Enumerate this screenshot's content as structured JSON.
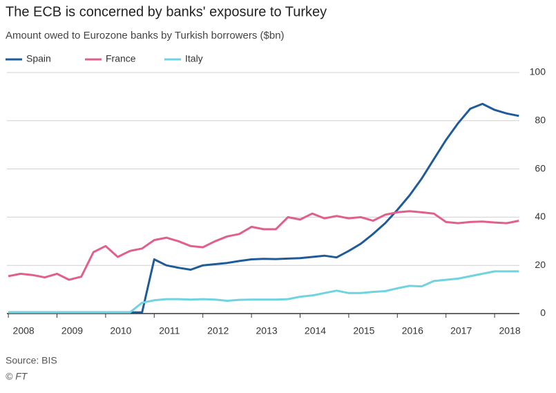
{
  "chart_data": {
    "type": "line",
    "title": "The ECB is concerned by banks' exposure to Turkey",
    "subtitle": "Amount owed to Eurozone banks by Turkish borrowers ($bn)",
    "source": "Source: BIS",
    "credit": "© FT",
    "x": [
      2008,
      2008.25,
      2008.5,
      2008.75,
      2009,
      2009.25,
      2009.5,
      2009.75,
      2010,
      2010.25,
      2010.5,
      2010.75,
      2011,
      2011.25,
      2011.5,
      2011.75,
      2012,
      2012.25,
      2012.5,
      2012.75,
      2013,
      2013.25,
      2013.5,
      2013.75,
      2014,
      2014.25,
      2014.5,
      2014.75,
      2015,
      2015.25,
      2015.5,
      2015.75,
      2016,
      2016.25,
      2016.5,
      2016.75,
      2017,
      2017.25,
      2017.5,
      2017.75,
      2018,
      2018.25,
      2018.5
    ],
    "series": [
      {
        "name": "Spain",
        "color": "#1f5b99",
        "values": [
          0.5,
          0.5,
          0.5,
          0.5,
          0.5,
          0.5,
          0.5,
          0.5,
          0.5,
          0.5,
          0.5,
          0.5,
          22.5,
          20,
          19,
          18.2,
          20,
          20.5,
          21,
          21.8,
          22.5,
          22.7,
          22.6,
          22.8,
          23,
          23.5,
          24,
          23.3,
          26,
          29,
          33,
          37.5,
          43,
          49,
          56,
          64,
          72,
          79,
          85,
          87,
          84.5,
          83,
          82
        ]
      },
      {
        "name": "France",
        "color": "#e0608a",
        "values": [
          15.5,
          16.5,
          16,
          15,
          16.5,
          14,
          15.3,
          25.5,
          28,
          23.5,
          26,
          27,
          30.5,
          31.5,
          30,
          28,
          27.5,
          30,
          32,
          33,
          36,
          35,
          35,
          40,
          39,
          41.5,
          39.5,
          40.5,
          39.5,
          40,
          38.5,
          41,
          42,
          42.5,
          42,
          41.5,
          38,
          37.5,
          38,
          38.2,
          37.8,
          37.5,
          38.5
        ]
      },
      {
        "name": "Italy",
        "color": "#6fd3e0",
        "values": [
          0.5,
          0.5,
          0.5,
          0.5,
          0.5,
          0.5,
          0.5,
          0.5,
          0.5,
          0.5,
          0.5,
          4.5,
          5.5,
          6,
          6,
          5.8,
          6,
          5.8,
          5.3,
          5.7,
          5.8,
          5.8,
          5.8,
          6,
          7,
          7.5,
          8.5,
          9.5,
          8.5,
          8.5,
          9,
          9.3,
          10.5,
          11.5,
          11.3,
          13.5,
          14,
          14.5,
          15.5,
          16.5,
          17.5,
          17.5,
          17.5
        ]
      }
    ],
    "xlim": [
      2007.97,
      2018.51
    ],
    "xticks": [
      2008,
      2009,
      2010,
      2011,
      2012,
      2013,
      2014,
      2015,
      2016,
      2017,
      2018
    ],
    "ylim": [
      0,
      100
    ],
    "yticks": [
      0,
      20,
      40,
      60,
      80,
      100
    ],
    "grid": true,
    "legend": "top"
  }
}
